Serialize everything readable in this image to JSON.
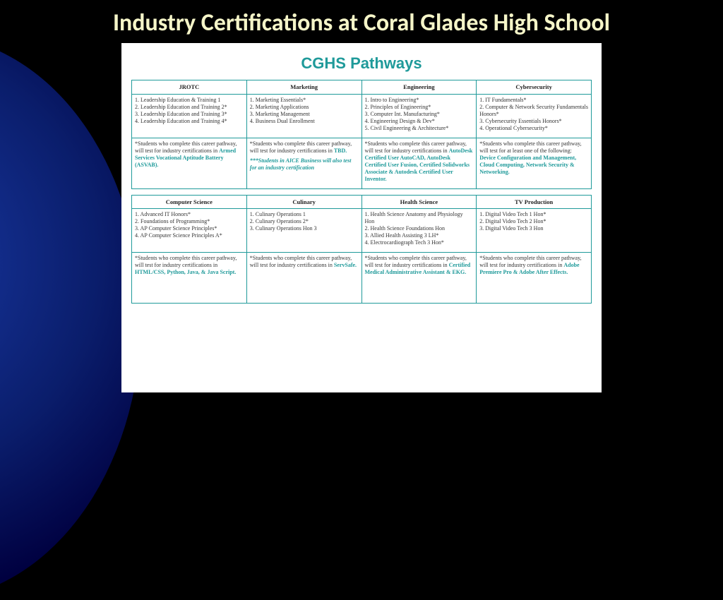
{
  "slide": {
    "title": "Industry Certifications at Coral Glades High School",
    "card_title": "CGHS Pathways",
    "colors": {
      "background": "#000000",
      "title_text": "#f5f5c8",
      "card_bg": "#ffffff",
      "accent": "#1f9a9a",
      "body_text": "#333333"
    }
  },
  "cert_prefix": "*Students who complete this career pathway, will test for industry certifications in ",
  "cert_prefix_alt": "*Students who complete this career pathway, will test for at least one of the following: ",
  "row1": [
    {
      "header": "JROTC",
      "courses": [
        "1. Leadership Education & Training 1",
        "2. Leadership Education and Training 2*",
        "3. Leadership Education and Training 3*",
        "4. Leadership Education and Training 4*"
      ],
      "cert": "Armed Services Vocational Aptitude Battery (ASVAB).",
      "note": ""
    },
    {
      "header": "Marketing",
      "courses": [
        "1. Marketing Essentials*",
        "2. Marketing Applications",
        "3. Marketing Management",
        "4. Business Dual Enrollment"
      ],
      "cert": "TBD.",
      "note": "***Students in AICE Business will also test for an industry certification"
    },
    {
      "header": "Engineering",
      "courses": [
        "1. Intro to Engineering*",
        "2. Principles of Engineering*",
        "3. Computer Int. Manufacturing*",
        "4. Engineering Design & Dev*",
        "5. Civil Engineering & Architecture*"
      ],
      "cert": "AutoDesk Certified User AutoCAD, AutoDesk Certified User Fusion, Certified Solidworks Associate & Autodesk Certified User Inventor.",
      "note": ""
    },
    {
      "header": "Cybersecurity",
      "courses": [
        "1. IT Fundamentals*",
        "2. Computer & Network Security Fundamentals Honors*",
        "3. Cybersecurity Essentials Honors*",
        "4. Operational Cybersecurity*"
      ],
      "cert": "Device Configuration and Management, Cloud Computing, Network Security & Networking.",
      "alt_prefix": true,
      "note": ""
    }
  ],
  "row2": [
    {
      "header": "Computer Science",
      "courses": [
        "1. Advanced IT Honors*",
        "2. Foundations of Programming*",
        "3. AP Computer Science Principles*",
        "4. AP Computer Science Principles A*"
      ],
      "cert": "HTML/CSS, Python, Java, & Java Script.",
      "note": ""
    },
    {
      "header": "Culinary",
      "courses": [
        "1. Culinary Operations 1",
        "2. Culinary Operations 2*",
        "3. Culinary Operations Hon 3"
      ],
      "cert": "ServSafe.",
      "note": ""
    },
    {
      "header": "Health Science",
      "courses": [
        "1. Health Science Anatomy and Physiology Hon",
        "2. Health Science Foundations Hon",
        "3. Allied Health Assisting 3 LH*",
        "4. Electrocardiograph Tech 3 Hon*"
      ],
      "cert": "Certified Medical Administrative Assistant & EKG.",
      "note": ""
    },
    {
      "header": "TV Production",
      "courses": [
        "1. Digital Video Tech 1 Hon*",
        "2. Digital Video Tech 2 Hon*",
        "3. Digital Video Tech 3 Hon"
      ],
      "cert": "Adobe Premiere Pro & Adobe After Effects.",
      "note": ""
    }
  ]
}
